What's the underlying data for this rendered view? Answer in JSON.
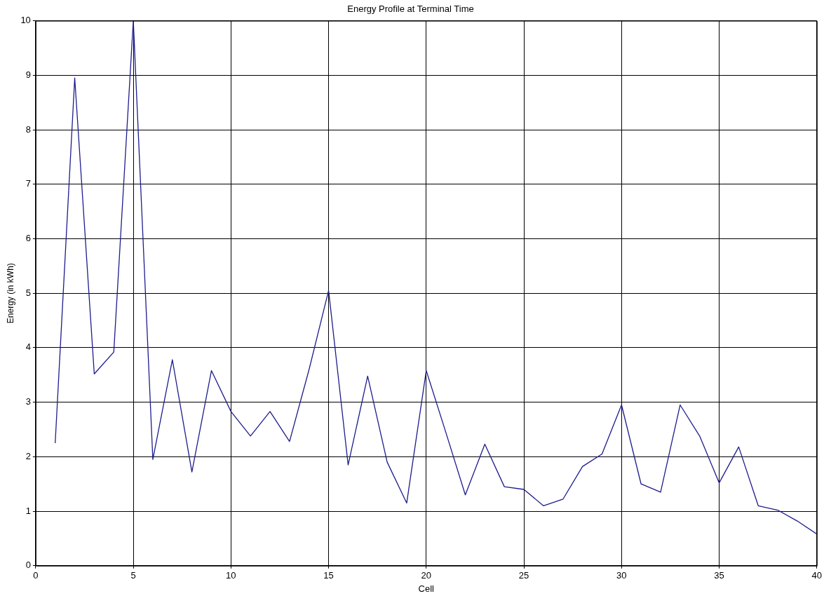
{
  "chart_data": {
    "type": "line",
    "title": "Energy Profile at Terminal Time",
    "xlabel": "Cell",
    "ylabel": "Energy (in kWh)",
    "x": [
      1,
      2,
      3,
      4,
      5,
      6,
      7,
      8,
      9,
      10,
      11,
      12,
      13,
      14,
      15,
      16,
      17,
      18,
      19,
      20,
      21,
      22,
      23,
      24,
      25,
      26,
      27,
      28,
      29,
      30,
      31,
      32,
      33,
      34,
      35,
      36,
      37,
      38,
      39,
      40
    ],
    "series": [
      {
        "color": "#1c1c8c",
        "values": [
          2.25,
          8.95,
          3.52,
          3.92,
          10.0,
          1.95,
          3.78,
          1.72,
          3.58,
          2.83,
          2.38,
          2.83,
          2.28,
          3.6,
          5.05,
          1.85,
          3.48,
          1.9,
          1.15,
          3.58,
          2.45,
          1.3,
          2.23,
          1.45,
          1.4,
          1.1,
          1.22,
          1.82,
          2.05,
          2.95,
          1.5,
          1.35,
          2.95,
          2.38,
          1.52,
          2.18,
          1.1,
          1.02,
          0.82,
          0.58
        ]
      }
    ],
    "xlim": [
      0,
      40
    ],
    "xticks": [
      0,
      5,
      10,
      15,
      20,
      25,
      30,
      35,
      40
    ],
    "ylim": [
      0,
      10
    ],
    "yticks": [
      0,
      1,
      2,
      3,
      4,
      5,
      6,
      7,
      8,
      9,
      10
    ],
    "grid": true,
    "legend": false,
    "marker": "none",
    "line_style": "solid"
  }
}
